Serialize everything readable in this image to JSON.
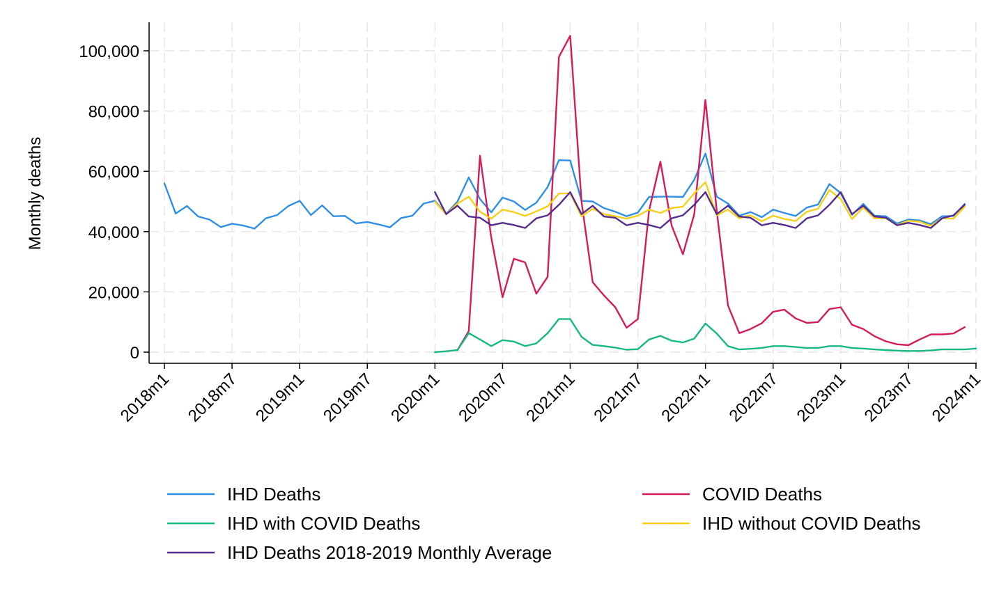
{
  "chart_data": {
    "type": "line",
    "title": "",
    "xlabel": "",
    "ylabel": "Monthly deaths",
    "ylim": [
      0,
      105000
    ],
    "grid": true,
    "legend_position": "bottom",
    "x_tick_labels": [
      "2018m1",
      "2018m7",
      "2019m1",
      "2019m7",
      "2020m1",
      "2020m7",
      "2021m1",
      "2021m7",
      "2022m1",
      "2022m7",
      "2023m1",
      "2023m7",
      "2024m1"
    ],
    "y_ticks": [
      0,
      20000,
      40000,
      60000,
      80000,
      100000
    ],
    "y_tick_labels": [
      "0",
      "20,000",
      "40,000",
      "60,000",
      "80,000",
      "100,000"
    ],
    "x_start": "2018m1",
    "series": [
      {
        "name": "IHD Deaths",
        "color": "#2f8fe5",
        "start": "2018m1",
        "values": [
          56000,
          46000,
          48500,
          45000,
          44000,
          41500,
          42600,
          42000,
          41000,
          44400,
          45500,
          48500,
          50200,
          45500,
          48700,
          45100,
          45200,
          42700,
          43200,
          42400,
          41400,
          44500,
          45300,
          49300,
          50200,
          45900,
          50000,
          58000,
          50800,
          46400,
          51300,
          50000,
          47200,
          49600,
          54800,
          63700,
          63600,
          50200,
          50000,
          47800,
          46600,
          45100,
          46300,
          51500,
          51600,
          51600,
          51500,
          57200,
          65900,
          51600,
          49300,
          45300,
          46500,
          44800,
          47300,
          46200,
          45200,
          48000,
          49000,
          55800,
          52800,
          45600,
          49200,
          45300,
          45100,
          42700,
          44000,
          43700,
          42500,
          45100,
          45200,
          49200
        ]
      },
      {
        "name": "COVID Deaths",
        "color": "#d41c5a",
        "start": "2020m3",
        "values": [
          700,
          7000,
          65200,
          38000,
          18200,
          31000,
          29800,
          19400,
          25000,
          98000,
          105000,
          50000,
          23200,
          18800,
          14900,
          8100,
          11000,
          47000,
          63200,
          42000,
          32500,
          45700,
          83700,
          47000,
          15500,
          6300,
          7700,
          9600,
          13400,
          14100,
          11200,
          9700,
          10000,
          14300,
          14900,
          9100,
          7700,
          5300,
          3600,
          2600,
          2300,
          4200,
          5900,
          5900,
          6200,
          8300
        ]
      },
      {
        "name": "IHD with COVID Deaths",
        "color": "#17b886",
        "start": "2020m1",
        "values": [
          0,
          300,
          700,
          6300,
          4200,
          2000,
          4000,
          3500,
          2000,
          2900,
          6300,
          11000,
          11000,
          5100,
          2400,
          2000,
          1500,
          800,
          1000,
          4200,
          5400,
          3800,
          3200,
          4500,
          9500,
          6200,
          2000,
          900,
          1100,
          1400,
          2000,
          2000,
          1700,
          1400,
          1400,
          2000,
          2000,
          1400,
          1200,
          900,
          700,
          500,
          400,
          400,
          600,
          900,
          900,
          900,
          1200
        ]
      },
      {
        "name": "IHD without COVID Deaths",
        "color": "#f6cf18",
        "start": "2020m1",
        "values": [
          49900,
          45700,
          49300,
          51600,
          46600,
          44300,
          47300,
          46500,
          45200,
          46700,
          48400,
          52600,
          52700,
          45100,
          47600,
          45800,
          45100,
          44300,
          45300,
          47300,
          46200,
          47800,
          48300,
          52700,
          56400,
          45400,
          47300,
          44400,
          45400,
          43400,
          45300,
          44200,
          43500,
          46600,
          47600,
          53800,
          50800,
          44200,
          48000,
          44400,
          44400,
          42200,
          43600,
          43300,
          41900,
          44500,
          44300,
          48300
        ]
      },
      {
        "name": "IHD Deaths 2018-2019 Monthly Average",
        "color": "#562d8e",
        "start": "2020m1",
        "values": [
          53100,
          45800,
          48600,
          45000,
          44600,
          42100,
          42900,
          42200,
          41200,
          44400,
          45400,
          48900,
          53100,
          45800,
          48600,
          45000,
          44600,
          42100,
          42900,
          42200,
          41200,
          44400,
          45400,
          48900,
          53100,
          45800,
          48600,
          45000,
          44600,
          42100,
          42900,
          42200,
          41200,
          44400,
          45400,
          48900,
          53100,
          45800,
          48600,
          45000,
          44600,
          42100,
          42900,
          42200,
          41200,
          44400,
          45400,
          48900
        ]
      }
    ],
    "legend": [
      {
        "label": "IHD Deaths",
        "color": "#2f8fe5"
      },
      {
        "label": "COVID Deaths",
        "color": "#d41c5a"
      },
      {
        "label": "IHD with COVID Deaths",
        "color": "#17b886"
      },
      {
        "label": "IHD without COVID Deaths",
        "color": "#f6cf18"
      },
      {
        "label": "IHD Deaths 2018-2019 Monthly Average",
        "color": "#562d8e"
      }
    ]
  }
}
